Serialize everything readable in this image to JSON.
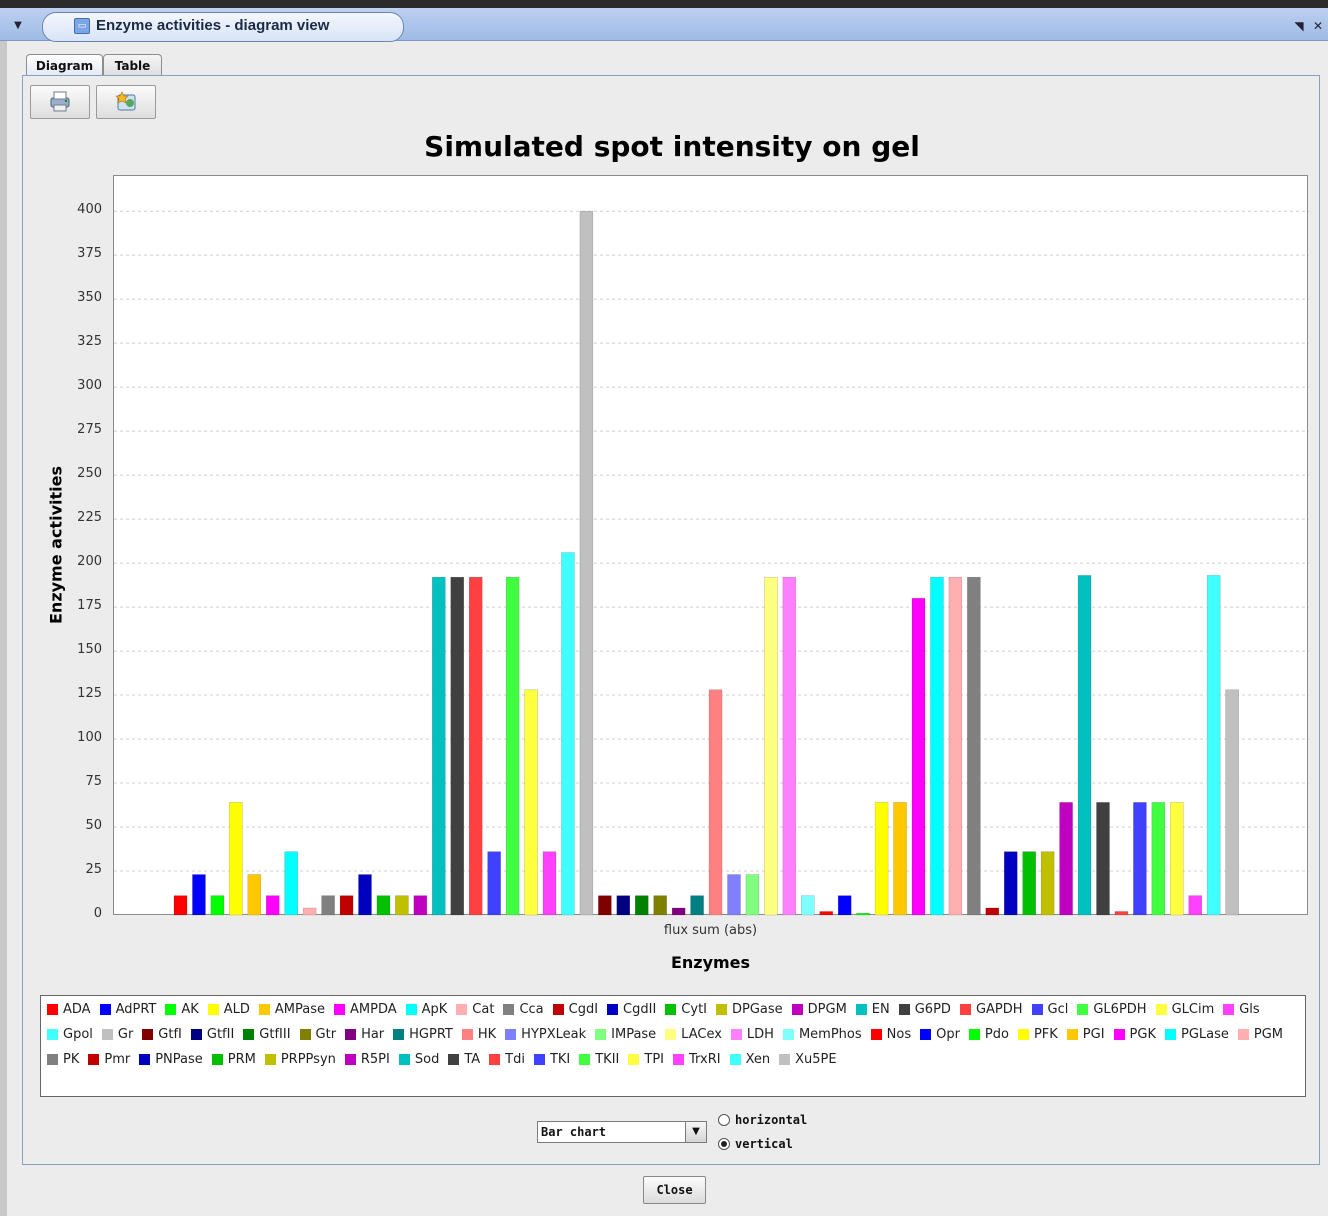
{
  "window": {
    "title": "Enzyme activities - diagram view",
    "menu_icon": "chevron-down-icon",
    "app_icon": "window-icon",
    "restore_icon": "restore-icon",
    "close_icon": "close-icon"
  },
  "tabs": [
    {
      "label": "Diagram",
      "active": true
    },
    {
      "label": "Table",
      "active": false
    }
  ],
  "toolbar": {
    "print_icon": "print-icon",
    "export_icon": "export-image-icon"
  },
  "controls": {
    "chart_type": "Bar chart",
    "orientation_options": [
      {
        "label": "horizontal",
        "selected": false
      },
      {
        "label": "vertical",
        "selected": true
      }
    ],
    "close_label": "Close"
  },
  "chart_data": {
    "type": "bar",
    "title": "Simulated spot intensity on gel",
    "xlabel": "Enzymes",
    "ylabel": "Enzyme activities",
    "categories": [
      "flux sum (abs)"
    ],
    "ylim": [
      0,
      420
    ],
    "yticks": [
      0,
      25,
      50,
      75,
      100,
      125,
      150,
      175,
      200,
      225,
      250,
      275,
      300,
      325,
      350,
      375,
      400
    ],
    "grid": true,
    "legend_position": "bottom",
    "series": [
      {
        "name": "ADA",
        "values": [
          11
        ],
        "color": "#ff0000"
      },
      {
        "name": "AdPRT",
        "values": [
          23
        ],
        "color": "#0000ff"
      },
      {
        "name": "AK",
        "values": [
          11
        ],
        "color": "#00ff00"
      },
      {
        "name": "ALD",
        "values": [
          64
        ],
        "color": "#ffff00"
      },
      {
        "name": "AMPase",
        "values": [
          23
        ],
        "color": "#ffc800"
      },
      {
        "name": "AMPDA",
        "values": [
          11
        ],
        "color": "#ff00ff"
      },
      {
        "name": "ApK",
        "values": [
          36
        ],
        "color": "#00ffff"
      },
      {
        "name": "Cat",
        "values": [
          4
        ],
        "color": "#ffafaf"
      },
      {
        "name": "Cca",
        "values": [
          11
        ],
        "color": "#808080"
      },
      {
        "name": "CgdI",
        "values": [
          11
        ],
        "color": "#c00000"
      },
      {
        "name": "CgdII",
        "values": [
          23
        ],
        "color": "#0000c0"
      },
      {
        "name": "CytI",
        "values": [
          11
        ],
        "color": "#00c000"
      },
      {
        "name": "DPGase",
        "values": [
          11
        ],
        "color": "#c0c000"
      },
      {
        "name": "DPGM",
        "values": [
          11
        ],
        "color": "#c000c0"
      },
      {
        "name": "EN",
        "values": [
          192
        ],
        "color": "#00c0c0"
      },
      {
        "name": "G6PD",
        "values": [
          192
        ],
        "color": "#404040"
      },
      {
        "name": "GAPDH",
        "values": [
          192
        ],
        "color": "#ff4040"
      },
      {
        "name": "Gcl",
        "values": [
          36
        ],
        "color": "#4040ff"
      },
      {
        "name": "GL6PDH",
        "values": [
          192
        ],
        "color": "#40ff40"
      },
      {
        "name": "GLCim",
        "values": [
          128
        ],
        "color": "#ffff40"
      },
      {
        "name": "Gls",
        "values": [
          36
        ],
        "color": "#ff40ff"
      },
      {
        "name": "Gpol",
        "values": [
          206
        ],
        "color": "#40ffff"
      },
      {
        "name": "Gr",
        "values": [
          400
        ],
        "color": "#c0c0c0"
      },
      {
        "name": "GtfI",
        "values": [
          11
        ],
        "color": "#800000"
      },
      {
        "name": "GtfII",
        "values": [
          11
        ],
        "color": "#000080"
      },
      {
        "name": "GtfIII",
        "values": [
          11
        ],
        "color": "#008000"
      },
      {
        "name": "Gtr",
        "values": [
          11
        ],
        "color": "#808000"
      },
      {
        "name": "Har",
        "values": [
          4
        ],
        "color": "#800080"
      },
      {
        "name": "HGPRT",
        "values": [
          11
        ],
        "color": "#008080"
      },
      {
        "name": "HK",
        "values": [
          128
        ],
        "color": "#ff8080"
      },
      {
        "name": "HYPXLeak",
        "values": [
          23
        ],
        "color": "#8080ff"
      },
      {
        "name": "IMPase",
        "values": [
          23
        ],
        "color": "#80ff80"
      },
      {
        "name": "LACex",
        "values": [
          192
        ],
        "color": "#ffff80"
      },
      {
        "name": "LDH",
        "values": [
          192
        ],
        "color": "#ff80ff"
      },
      {
        "name": "MemPhos",
        "values": [
          11
        ],
        "color": "#80ffff"
      },
      {
        "name": "Nos",
        "values": [
          2
        ],
        "color": "#ff0000"
      },
      {
        "name": "Opr",
        "values": [
          11
        ],
        "color": "#0000ff"
      },
      {
        "name": "Pdo",
        "values": [
          1
        ],
        "color": "#00ff00"
      },
      {
        "name": "PFK",
        "values": [
          64
        ],
        "color": "#ffff00"
      },
      {
        "name": "PGI",
        "values": [
          64
        ],
        "color": "#ffc800"
      },
      {
        "name": "PGK",
        "values": [
          180
        ],
        "color": "#ff00ff"
      },
      {
        "name": "PGLase",
        "values": [
          192
        ],
        "color": "#00ffff"
      },
      {
        "name": "PGM",
        "values": [
          192
        ],
        "color": "#ffafaf"
      },
      {
        "name": "PK",
        "values": [
          192
        ],
        "color": "#808080"
      },
      {
        "name": "Pmr",
        "values": [
          4
        ],
        "color": "#c00000"
      },
      {
        "name": "PNPase",
        "values": [
          36
        ],
        "color": "#0000c0"
      },
      {
        "name": "PRM",
        "values": [
          36
        ],
        "color": "#00c000"
      },
      {
        "name": "PRPPsyn",
        "values": [
          36
        ],
        "color": "#c0c000"
      },
      {
        "name": "R5PI",
        "values": [
          64
        ],
        "color": "#c000c0"
      },
      {
        "name": "Sod",
        "values": [
          193
        ],
        "color": "#00c0c0"
      },
      {
        "name": "TA",
        "values": [
          64
        ],
        "color": "#404040"
      },
      {
        "name": "Tdi",
        "values": [
          2
        ],
        "color": "#ff4040"
      },
      {
        "name": "TKI",
        "values": [
          64
        ],
        "color": "#4040ff"
      },
      {
        "name": "TKII",
        "values": [
          64
        ],
        "color": "#40ff40"
      },
      {
        "name": "TPI",
        "values": [
          64
        ],
        "color": "#ffff40"
      },
      {
        "name": "TrxRI",
        "values": [
          11
        ],
        "color": "#ff40ff"
      },
      {
        "name": "Xen",
        "values": [
          193
        ],
        "color": "#40ffff"
      },
      {
        "name": "Xu5PE",
        "values": [
          128
        ],
        "color": "#c0c0c0"
      }
    ]
  }
}
